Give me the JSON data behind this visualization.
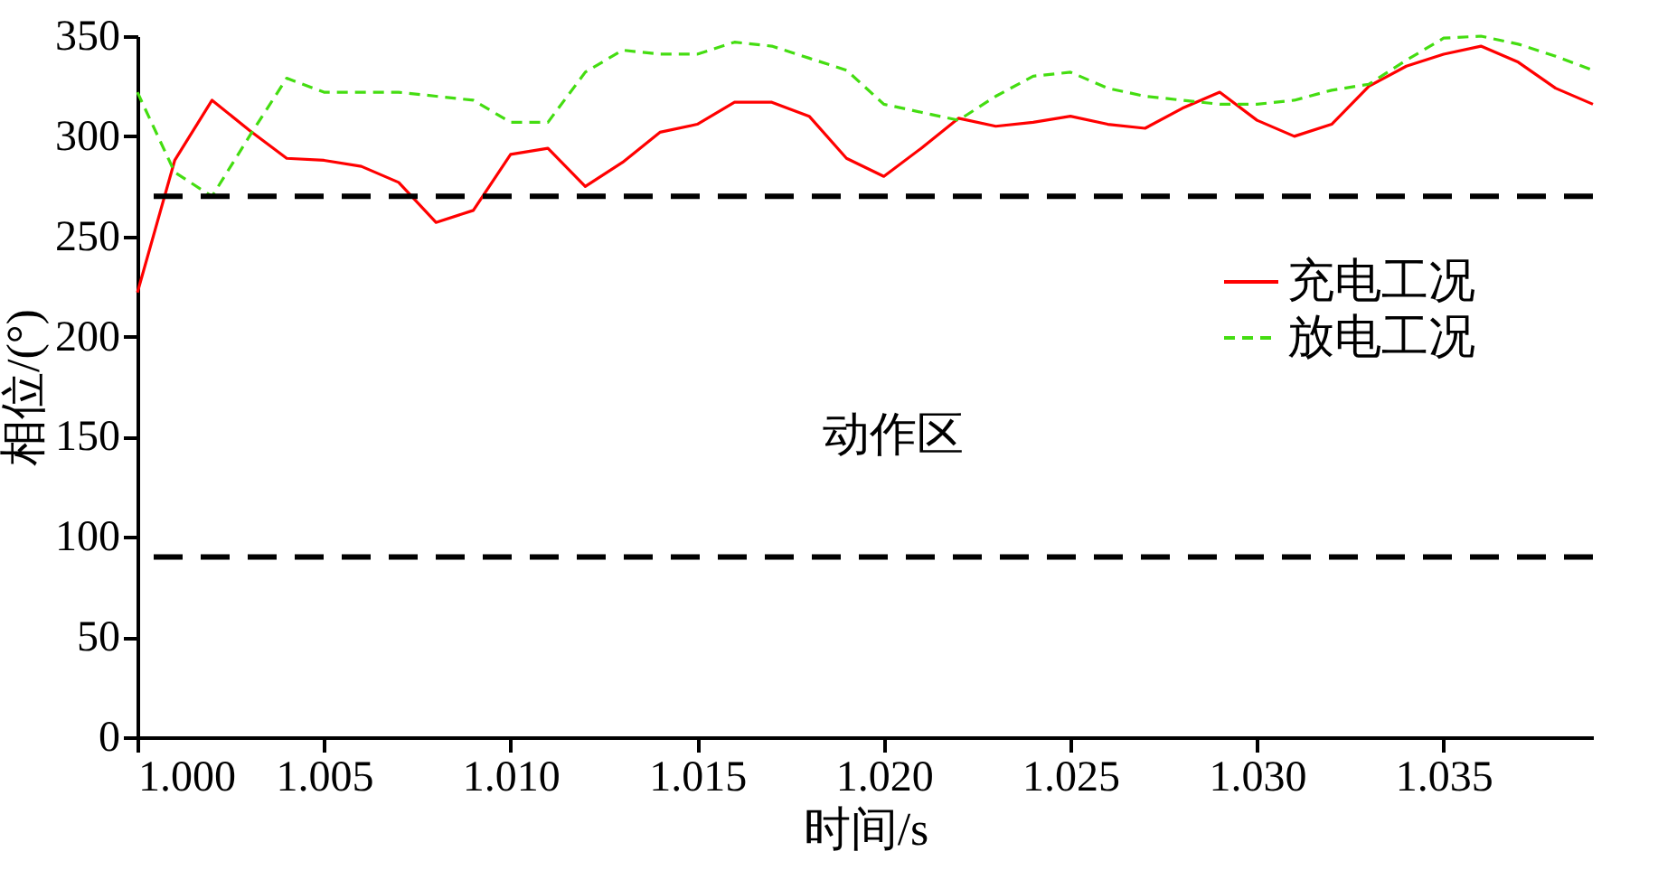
{
  "chart_data": {
    "type": "line",
    "xlabel": "时间/s",
    "ylabel": "相位/(°)",
    "x": [
      1.0,
      1.001,
      1.002,
      1.003,
      1.004,
      1.005,
      1.006,
      1.007,
      1.008,
      1.009,
      1.01,
      1.011,
      1.012,
      1.013,
      1.014,
      1.015,
      1.016,
      1.017,
      1.018,
      1.019,
      1.02,
      1.021,
      1.022,
      1.023,
      1.024,
      1.025,
      1.026,
      1.027,
      1.028,
      1.029,
      1.03,
      1.031,
      1.032,
      1.033,
      1.034,
      1.035,
      1.036,
      1.037,
      1.038,
      1.039
    ],
    "series": [
      {
        "name": "充电工况",
        "color": "#ff0000",
        "line_style": "solid",
        "values": [
          222,
          288,
          318,
          303,
          289,
          288,
          285,
          277,
          257,
          263,
          291,
          294,
          275,
          287,
          302,
          306,
          317,
          317,
          310,
          289,
          280,
          294,
          309,
          305,
          307,
          310,
          306,
          304,
          314,
          322,
          308,
          300,
          306,
          325,
          335,
          341,
          345,
          337,
          324,
          316
        ]
      },
      {
        "name": "放电工况",
        "color": "#44dd11",
        "line_style": "dashed",
        "values": [
          322,
          282,
          270,
          300,
          329,
          322,
          322,
          322,
          320,
          318,
          307,
          307,
          332,
          343,
          341,
          341,
          347,
          345,
          339,
          333,
          316,
          312,
          308,
          320,
          330,
          332,
          324,
          320,
          318,
          316,
          316,
          318,
          323,
          326,
          338,
          349,
          350,
          346,
          340,
          333
        ]
      }
    ],
    "xlim": [
      1.0,
      1.039
    ],
    "xticks": [
      {
        "value": 1.0,
        "label": "1.000"
      },
      {
        "value": 1.005,
        "label": "1.005"
      },
      {
        "value": 1.01,
        "label": "1.010"
      },
      {
        "value": 1.015,
        "label": "1.015"
      },
      {
        "value": 1.02,
        "label": "1.020"
      },
      {
        "value": 1.025,
        "label": "1.025"
      },
      {
        "value": 1.03,
        "label": "1.030"
      },
      {
        "value": 1.035,
        "label": "1.035"
      }
    ],
    "ylim": [
      0,
      350
    ],
    "yticks": [
      0,
      50,
      100,
      150,
      200,
      250,
      300,
      350
    ],
    "ref_lines": [
      {
        "axis": "y",
        "value": 270,
        "color": "#000000",
        "line_style": "dashed"
      },
      {
        "axis": "y",
        "value": 90,
        "color": "#000000",
        "line_style": "dashed"
      }
    ],
    "annotations": [
      "动作区"
    ],
    "grid": false,
    "legend": "right",
    "marker": "none"
  }
}
